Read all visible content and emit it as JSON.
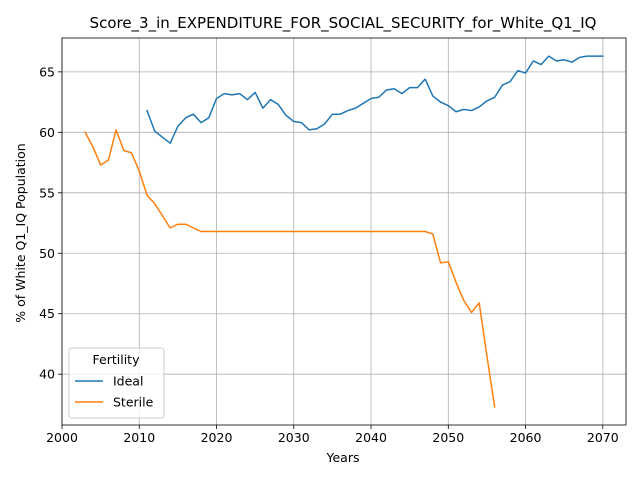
{
  "chart_data": {
    "type": "line",
    "title": "Score_3_in_EXPENDITURE_FOR_SOCIAL_SECURITY_for_White_Q1_IQ",
    "xlabel": "Years",
    "ylabel": "% of White Q1_IQ Population",
    "xlim": [
      2000,
      2073
    ],
    "ylim": [
      35.8,
      67.8
    ],
    "xticks": [
      2000,
      2010,
      2020,
      2030,
      2040,
      2050,
      2060,
      2070
    ],
    "yticks": [
      40,
      45,
      50,
      55,
      60,
      65
    ],
    "grid": true,
    "legend": {
      "title": "Fertility",
      "placement": "lower-left"
    },
    "series": [
      {
        "name": "Ideal",
        "color": "#1f77b4",
        "x": [
          2011,
          2012,
          2013,
          2014,
          2015,
          2016,
          2017,
          2018,
          2019,
          2020,
          2021,
          2022,
          2023,
          2024,
          2025,
          2026,
          2027,
          2028,
          2029,
          2030,
          2031,
          2032,
          2033,
          2034,
          2035,
          2036,
          2037,
          2038,
          2039,
          2040,
          2041,
          2042,
          2043,
          2044,
          2045,
          2046,
          2047,
          2048,
          2049,
          2050,
          2051,
          2052,
          2053,
          2054,
          2055,
          2056,
          2057,
          2058,
          2059,
          2060,
          2061,
          2062,
          2063,
          2064,
          2065,
          2066,
          2067,
          2068,
          2069,
          2070
        ],
        "y": [
          61.8,
          60.1,
          59.6,
          59.1,
          60.5,
          61.2,
          61.5,
          60.8,
          61.2,
          62.8,
          63.2,
          63.1,
          63.2,
          62.7,
          63.3,
          62.0,
          62.7,
          62.3,
          61.4,
          60.9,
          60.8,
          60.2,
          60.3,
          60.7,
          61.5,
          61.5,
          61.8,
          62.0,
          62.4,
          62.8,
          62.9,
          63.5,
          63.6,
          63.2,
          63.7,
          63.7,
          64.4,
          63.0,
          62.5,
          62.2,
          61.7,
          61.9,
          61.8,
          62.1,
          62.6,
          62.9,
          63.9,
          64.2,
          65.1,
          64.9,
          65.9,
          65.6,
          66.3,
          65.9,
          66.0,
          65.8,
          66.2,
          66.3,
          66.3,
          66.3
        ]
      },
      {
        "name": "Sterile",
        "color": "#ff7f0e",
        "x": [
          2003,
          2004,
          2005,
          2006,
          2007,
          2008,
          2009,
          2010,
          2011,
          2012,
          2013,
          2014,
          2015,
          2016,
          2017,
          2018,
          2019,
          2020,
          2021,
          2022,
          2023,
          2024,
          2025,
          2026,
          2027,
          2028,
          2029,
          2030,
          2031,
          2032,
          2033,
          2034,
          2035,
          2036,
          2037,
          2038,
          2039,
          2040,
          2041,
          2042,
          2043,
          2044,
          2045,
          2046,
          2047,
          2048,
          2049,
          2050,
          2051,
          2052,
          2053,
          2054,
          2055,
          2056
        ],
        "y": [
          60.0,
          58.8,
          57.3,
          57.7,
          60.2,
          58.5,
          58.3,
          56.8,
          54.8,
          54.1,
          53.1,
          52.1,
          52.4,
          52.4,
          52.1,
          51.8,
          51.8,
          51.8,
          51.8,
          51.8,
          51.8,
          51.8,
          51.8,
          51.8,
          51.8,
          51.8,
          51.8,
          51.8,
          51.8,
          51.8,
          51.8,
          51.8,
          51.8,
          51.8,
          51.8,
          51.8,
          51.8,
          51.8,
          51.8,
          51.8,
          51.8,
          51.8,
          51.8,
          51.8,
          51.8,
          51.6,
          49.2,
          49.3,
          47.6,
          46.1,
          45.1,
          45.9,
          41.5,
          37.3
        ]
      }
    ]
  }
}
